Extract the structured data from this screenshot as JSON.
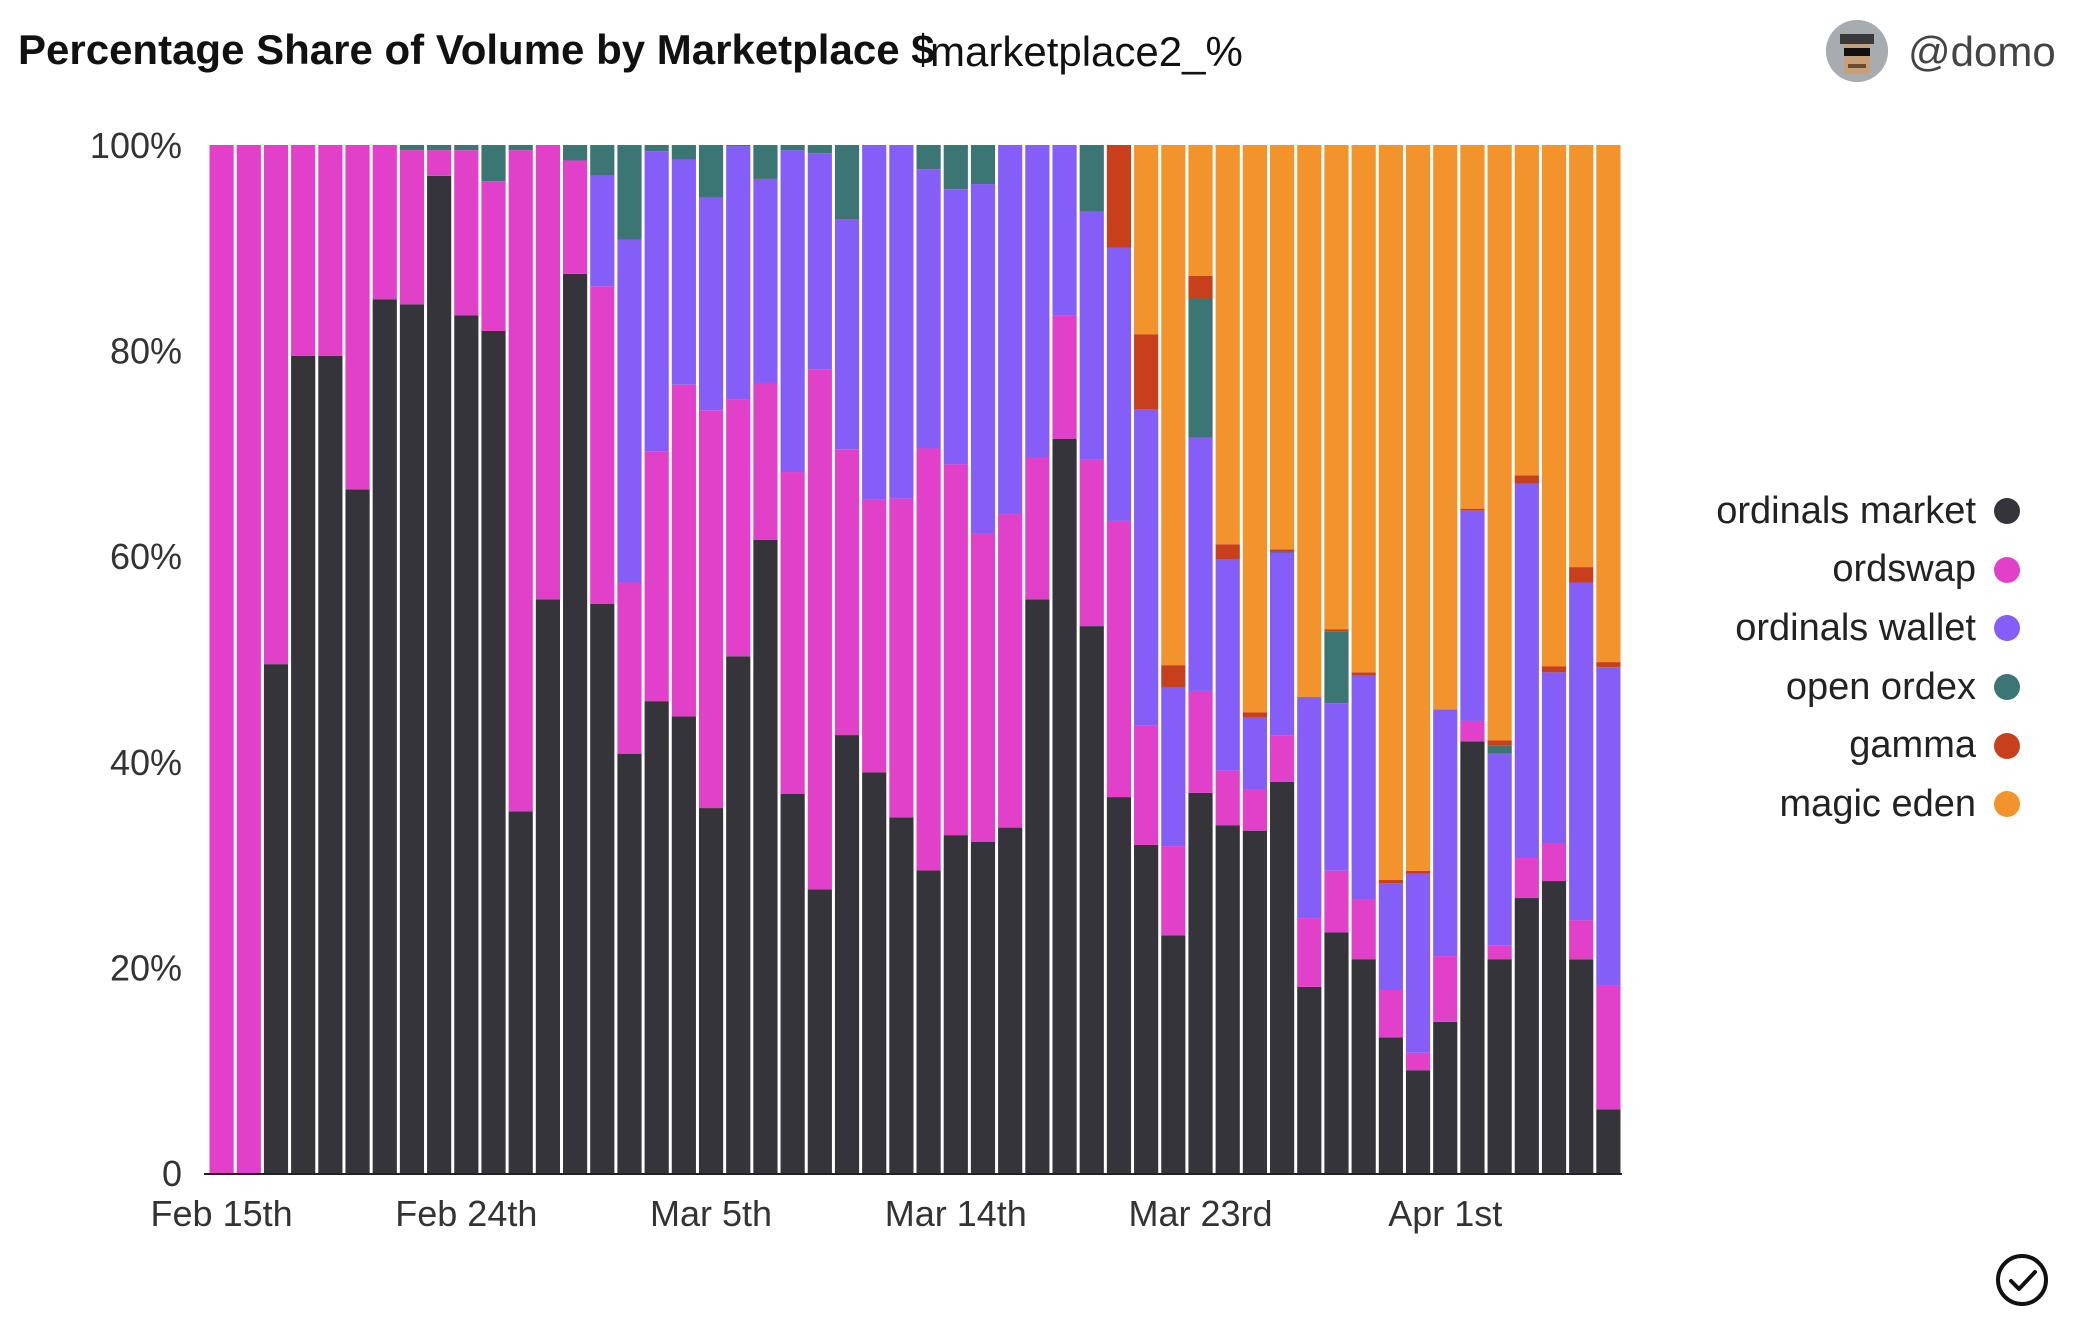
{
  "header": {
    "title": "Percentage Share of Volume by Marketplace $",
    "subtitle": "marketplace2_%",
    "user_handle": "@domo"
  },
  "chart_data": {
    "type": "bar",
    "stacked": true,
    "normalized": true,
    "x_tick_labels": [
      "Feb 15th",
      "Feb 24th",
      "Mar 5th",
      "Mar 14th",
      "Mar 23rd",
      "Apr 1st"
    ],
    "x_tick_indices": [
      0,
      9,
      18,
      27,
      36,
      45
    ],
    "y_ticks": [
      "0",
      "20%",
      "40%",
      "60%",
      "80%",
      "100%"
    ],
    "ylim": [
      0,
      100
    ],
    "legend_position": "right",
    "series": [
      {
        "name": "ordinals market",
        "color": "#35343b",
        "values": [
          0,
          0,
          49.5,
          79.5,
          79.5,
          66.5,
          85,
          84.5,
          97,
          83,
          81.5,
          35,
          55.8,
          87.2,
          55.6,
          40.8,
          45.9,
          44.2,
          35.5,
          48.3,
          61.6,
          37.2,
          27.6,
          42.6,
          39.1,
          34.6,
          30.1,
          32.9,
          32.2,
          33.6,
          55.8,
          71.4,
          53.2,
          35.8,
          35.2,
          23.1,
          36.9,
          33.8,
          33.3,
          38,
          18.1,
          23.4,
          20.8,
          13.2,
          10,
          14.7,
          42.5,
          20.8,
          26.8,
          28.4,
          20.8,
          6.2
        ]
      },
      {
        "name": "ordswap",
        "color": "#e041c8",
        "values": [
          100,
          100,
          50.5,
          20.5,
          20.5,
          33.5,
          15,
          15,
          2.5,
          16,
          14.5,
          64,
          44.2,
          11,
          31,
          16.7,
          24.3,
          32.1,
          38.7,
          24,
          15.2,
          31.6,
          50.6,
          27.8,
          26.6,
          31,
          42,
          36.1,
          30,
          30.5,
          13.8,
          12,
          16.2,
          26.3,
          12.8,
          8.7,
          9.9,
          5.3,
          4,
          4.5,
          6.7,
          6,
          5.8,
          4.6,
          1.7,
          6.4,
          2,
          1.3,
          3.9,
          3.7,
          3.8,
          12
        ]
      },
      {
        "name": "ordinals wallet",
        "color": "#845ef7",
        "values": [
          0,
          0,
          0,
          0,
          0,
          0,
          0,
          0,
          0,
          0,
          0,
          0,
          0,
          0,
          10.8,
          33.4,
          29.2,
          21.8,
          20.7,
          23.7,
          19.9,
          31.6,
          21,
          22.4,
          34.6,
          34.4,
          27.8,
          26.8,
          34,
          35.9,
          30.4,
          16.6,
          24.1,
          26,
          33.9,
          15.4,
          24.6,
          20.5,
          7,
          17.8,
          21.5,
          16.3,
          21.8,
          10.4,
          17.4,
          24,
          20.7,
          18.7,
          36.5,
          16.6,
          32.9,
          31
        ]
      },
      {
        "name": "open ordex",
        "color": "#3b7574",
        "values": [
          0,
          0,
          0,
          0,
          0,
          0,
          0,
          0.5,
          0.5,
          0.5,
          3.5,
          0.5,
          0,
          1.5,
          3,
          9.2,
          0.6,
          1.4,
          5.1,
          0.1,
          3.3,
          0.5,
          0.8,
          7.2,
          0,
          0,
          2.4,
          4.3,
          3.8,
          0,
          0,
          0,
          6.5,
          0,
          0,
          0,
          13.5,
          0,
          0,
          0.1,
          0,
          7,
          0,
          0,
          0,
          0,
          0,
          0.8,
          0,
          0,
          0,
          0
        ]
      },
      {
        "name": "gamma",
        "color": "#c8401b",
        "values": [
          0,
          0,
          0,
          0,
          0,
          0,
          0,
          0,
          0,
          0,
          0,
          0,
          0,
          0,
          0,
          0,
          0,
          0,
          0,
          0,
          0,
          0,
          0,
          0,
          0,
          0,
          0,
          0,
          0,
          0,
          0,
          0,
          0,
          9.8,
          8.1,
          2.2,
          2.2,
          1.5,
          0.5,
          0.2,
          0,
          0.2,
          0.3,
          0.3,
          0.3,
          0,
          0.2,
          0.5,
          0.8,
          0.6,
          1.5,
          0.5
        ]
      },
      {
        "name": "magic eden",
        "color": "#f2932b",
        "values": [
          0,
          0,
          0,
          0,
          0,
          0,
          0,
          0,
          0,
          0,
          0,
          0,
          0,
          0,
          0,
          0,
          0,
          0,
          0,
          0,
          0,
          0,
          0,
          0,
          0,
          0,
          0,
          0,
          0,
          0,
          0,
          0,
          0,
          0,
          20.3,
          50.6,
          12.7,
          38.8,
          55.2,
          39.3,
          53.7,
          47.1,
          51.3,
          71.5,
          70.6,
          54.9,
          35.8,
          57.9,
          32.2,
          50.7,
          41.1,
          50.3
        ]
      }
    ]
  }
}
